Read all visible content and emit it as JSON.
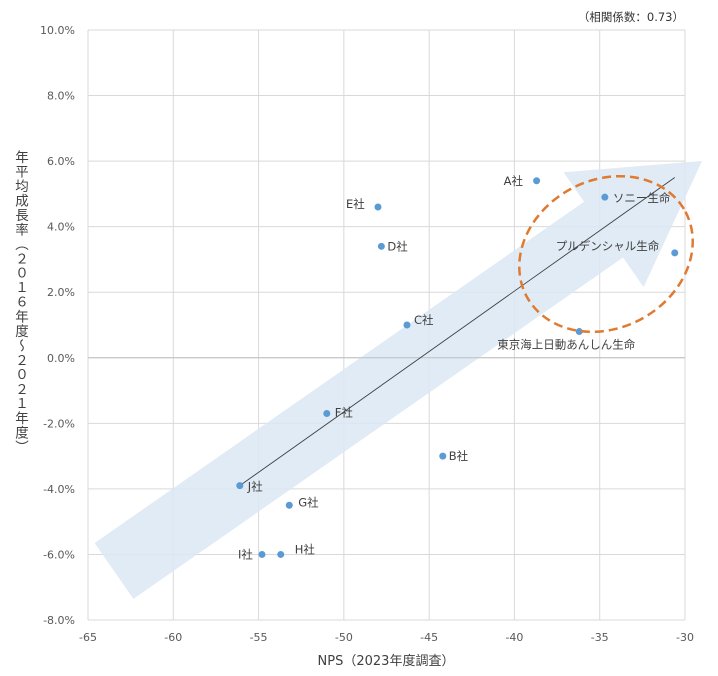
{
  "chart_data": {
    "type": "scatter",
    "annotation": "（相関係数：0.73）",
    "xlabel": "NPS（2023年度調査）",
    "ylabel": "年平均成長率（２０１６年度〜２０２１年度）",
    "xlim": [
      -65,
      -30
    ],
    "ylim": [
      -8.0,
      10.0
    ],
    "x_ticks": [
      -65,
      -60,
      -55,
      -50,
      -45,
      -40,
      -35,
      -30
    ],
    "y_ticks": [
      -8.0,
      -6.0,
      -4.0,
      -2.0,
      0.0,
      2.0,
      4.0,
      6.0,
      8.0,
      10.0
    ],
    "y_tick_suffix": "%",
    "grid": true,
    "trendline": {
      "x1": -56.1,
      "y1": -3.9,
      "x2": -30.6,
      "y2": 5.5
    },
    "colors": {
      "point": "#5b9bd5",
      "arrow": "#dbe8f5",
      "ellipse": "#e07a30",
      "grid": "#d9d9d9",
      "trend": "#404040"
    },
    "points": [
      {
        "label": "A社",
        "x": -38.7,
        "y": 5.4
      },
      {
        "label": "B社",
        "x": -44.2,
        "y": -3.0
      },
      {
        "label": "C社",
        "x": -46.3,
        "y": 1.0
      },
      {
        "label": "D社",
        "x": -47.8,
        "y": 3.4
      },
      {
        "label": "E社",
        "x": -48.0,
        "y": 4.6
      },
      {
        "label": "F社",
        "x": -51.0,
        "y": -1.7
      },
      {
        "label": "G社",
        "x": -53.2,
        "y": -4.5
      },
      {
        "label": "H社",
        "x": -53.7,
        "y": -6.0
      },
      {
        "label": "I社",
        "x": -54.8,
        "y": -6.0
      },
      {
        "label": "J社",
        "x": -56.1,
        "y": -3.9
      },
      {
        "label": "ソニー生命",
        "x": -34.7,
        "y": 4.9
      },
      {
        "label": "プルデンシャル生命",
        "x": -30.6,
        "y": 3.2
      },
      {
        "label": "東京海上日動あんしん生命",
        "x": -36.2,
        "y": 0.8
      }
    ]
  }
}
